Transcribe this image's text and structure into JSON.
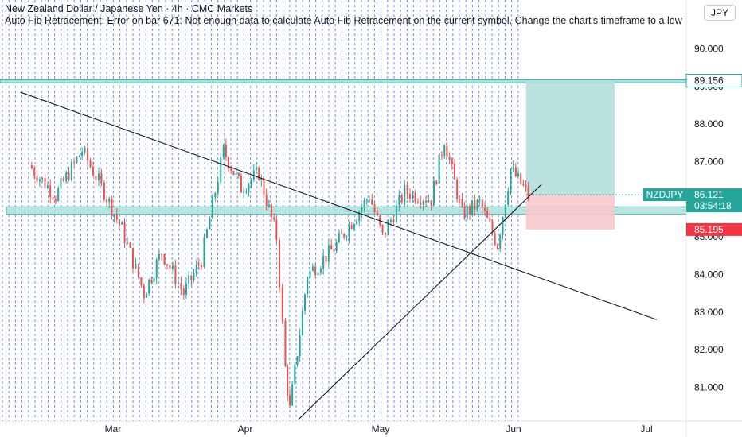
{
  "header": {
    "title": "New Zealand Dollar / Japanese Yen · 4h · CMC Markets",
    "error": "Auto Fib Retracement: Error on bar 671: Not enough data to calculate Auto Fib Retracement on the current symbol. Change the chart's timeframe to a low"
  },
  "currency": "JPY",
  "price_scale": {
    "ticks": [
      "90.000",
      "89.000",
      "88.000",
      "87.000",
      "86.000",
      "85.000",
      "84.000",
      "83.000",
      "82.000",
      "81.000"
    ],
    "ylim": [
      80.1,
      91.3
    ]
  },
  "time_axis": {
    "labels": [
      "Mar",
      "Apr",
      "May",
      "Jun",
      "Jul"
    ]
  },
  "markers": {
    "target": {
      "value": "89.156",
      "color": "#26a69a"
    },
    "current": {
      "symbol": "NZDJPY",
      "value": "86.121",
      "countdown": "03:54:18",
      "color": "#26a69a"
    },
    "stop": {
      "value": "85.195",
      "color": "#f23645"
    }
  },
  "colors": {
    "up": "#26a69a",
    "down": "#ef5350",
    "grid": "#2962ff",
    "line": "#131722",
    "zone_fill": "#b2dfdb",
    "loss_fill": "#f8c9cd",
    "profit_fill": "#b2dfdb"
  },
  "chart_data": {
    "type": "candlestick",
    "symbol": "NZDJPY",
    "timeframe": "4h",
    "approx_close_path": [
      {
        "date": "Feb 10",
        "close": 86.9
      },
      {
        "date": "Feb 16",
        "close": 86.1
      },
      {
        "date": "Feb 22",
        "close": 87.3
      },
      {
        "date": "Feb 27",
        "close": 86.2
      },
      {
        "date": "Mar 3",
        "close": 85.2
      },
      {
        "date": "Mar 8",
        "close": 83.5
      },
      {
        "date": "Mar 12",
        "close": 84.6
      },
      {
        "date": "Mar 17",
        "close": 83.5
      },
      {
        "date": "Mar 21",
        "close": 84.4
      },
      {
        "date": "Mar 26",
        "close": 87.3
      },
      {
        "date": "Mar 30",
        "close": 86.3
      },
      {
        "date": "Apr 3",
        "close": 86.7
      },
      {
        "date": "Apr 7",
        "close": 85.0
      },
      {
        "date": "Apr 9",
        "close": 81.5
      },
      {
        "date": "Apr 10",
        "close": 80.4
      },
      {
        "date": "Apr 14",
        "close": 84.0
      },
      {
        "date": "Apr 20",
        "close": 84.7
      },
      {
        "date": "Apr 24",
        "close": 85.4
      },
      {
        "date": "Apr 28",
        "close": 86.1
      },
      {
        "date": "May 1",
        "close": 85.0
      },
      {
        "date": "May 6",
        "close": 86.2
      },
      {
        "date": "May 12",
        "close": 86.0
      },
      {
        "date": "May 15",
        "close": 87.6
      },
      {
        "date": "May 19",
        "close": 85.6
      },
      {
        "date": "May 23",
        "close": 85.9
      },
      {
        "date": "May 27",
        "close": 84.8
      },
      {
        "date": "May 30",
        "close": 86.8
      },
      {
        "date": "Jun 3",
        "close": 86.12
      }
    ],
    "trendlines": [
      {
        "name": "descending",
        "from": {
          "date": "Feb 8",
          "price": 88.85
        },
        "to": {
          "date": "Jul 2",
          "price": 82.8
        }
      },
      {
        "name": "ascending",
        "from": {
          "date": "Apr 12",
          "price": 80.15
        },
        "to": {
          "date": "Jun 6",
          "price": 86.4
        }
      }
    ],
    "support_zone": [
      85.6,
      85.8
    ],
    "resistance_zone": [
      89.12,
      89.16
    ],
    "position": {
      "entry": 86.121,
      "target": 89.156,
      "stop": 85.195
    }
  }
}
